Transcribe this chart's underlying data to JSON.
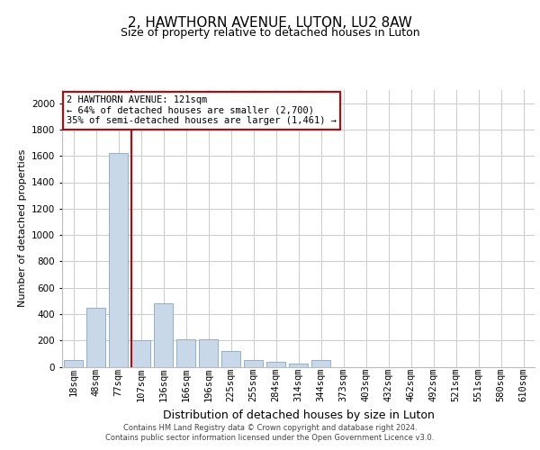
{
  "title": "2, HAWTHORN AVENUE, LUTON, LU2 8AW",
  "subtitle": "Size of property relative to detached houses in Luton",
  "xlabel": "Distribution of detached houses by size in Luton",
  "ylabel": "Number of detached properties",
  "footer_line1": "Contains HM Land Registry data © Crown copyright and database right 2024.",
  "footer_line2": "Contains public sector information licensed under the Open Government Licence v3.0.",
  "annotation_line1": "2 HAWTHORN AVENUE: 121sqm",
  "annotation_line2": "← 64% of detached houses are smaller (2,700)",
  "annotation_line3": "35% of semi-detached houses are larger (1,461) →",
  "bar_labels": [
    "18sqm",
    "48sqm",
    "77sqm",
    "107sqm",
    "136sqm",
    "166sqm",
    "196sqm",
    "225sqm",
    "255sqm",
    "284sqm",
    "314sqm",
    "344sqm",
    "373sqm",
    "403sqm",
    "432sqm",
    "462sqm",
    "492sqm",
    "521sqm",
    "551sqm",
    "580sqm",
    "610sqm"
  ],
  "bar_values": [
    50,
    450,
    1620,
    200,
    480,
    210,
    210,
    120,
    50,
    40,
    25,
    50,
    0,
    0,
    0,
    0,
    0,
    0,
    0,
    0,
    0
  ],
  "bar_color": "#c8d8e8",
  "bar_edge_color": "#7fa8cc",
  "red_line_color": "#cc0000",
  "red_line_index": 3,
  "ylim": [
    0,
    2100
  ],
  "yticks": [
    0,
    200,
    400,
    600,
    800,
    1000,
    1200,
    1400,
    1600,
    1800,
    2000
  ],
  "background_color": "#ffffff",
  "grid_color": "#cccccc",
  "title_fontsize": 11,
  "subtitle_fontsize": 9,
  "ylabel_fontsize": 8,
  "xlabel_fontsize": 9,
  "tick_fontsize": 7.5,
  "annot_fontsize": 7.5,
  "footer_fontsize": 6,
  "annot_box_color": "#ffffff",
  "annot_box_edge_color": "#cc0000"
}
